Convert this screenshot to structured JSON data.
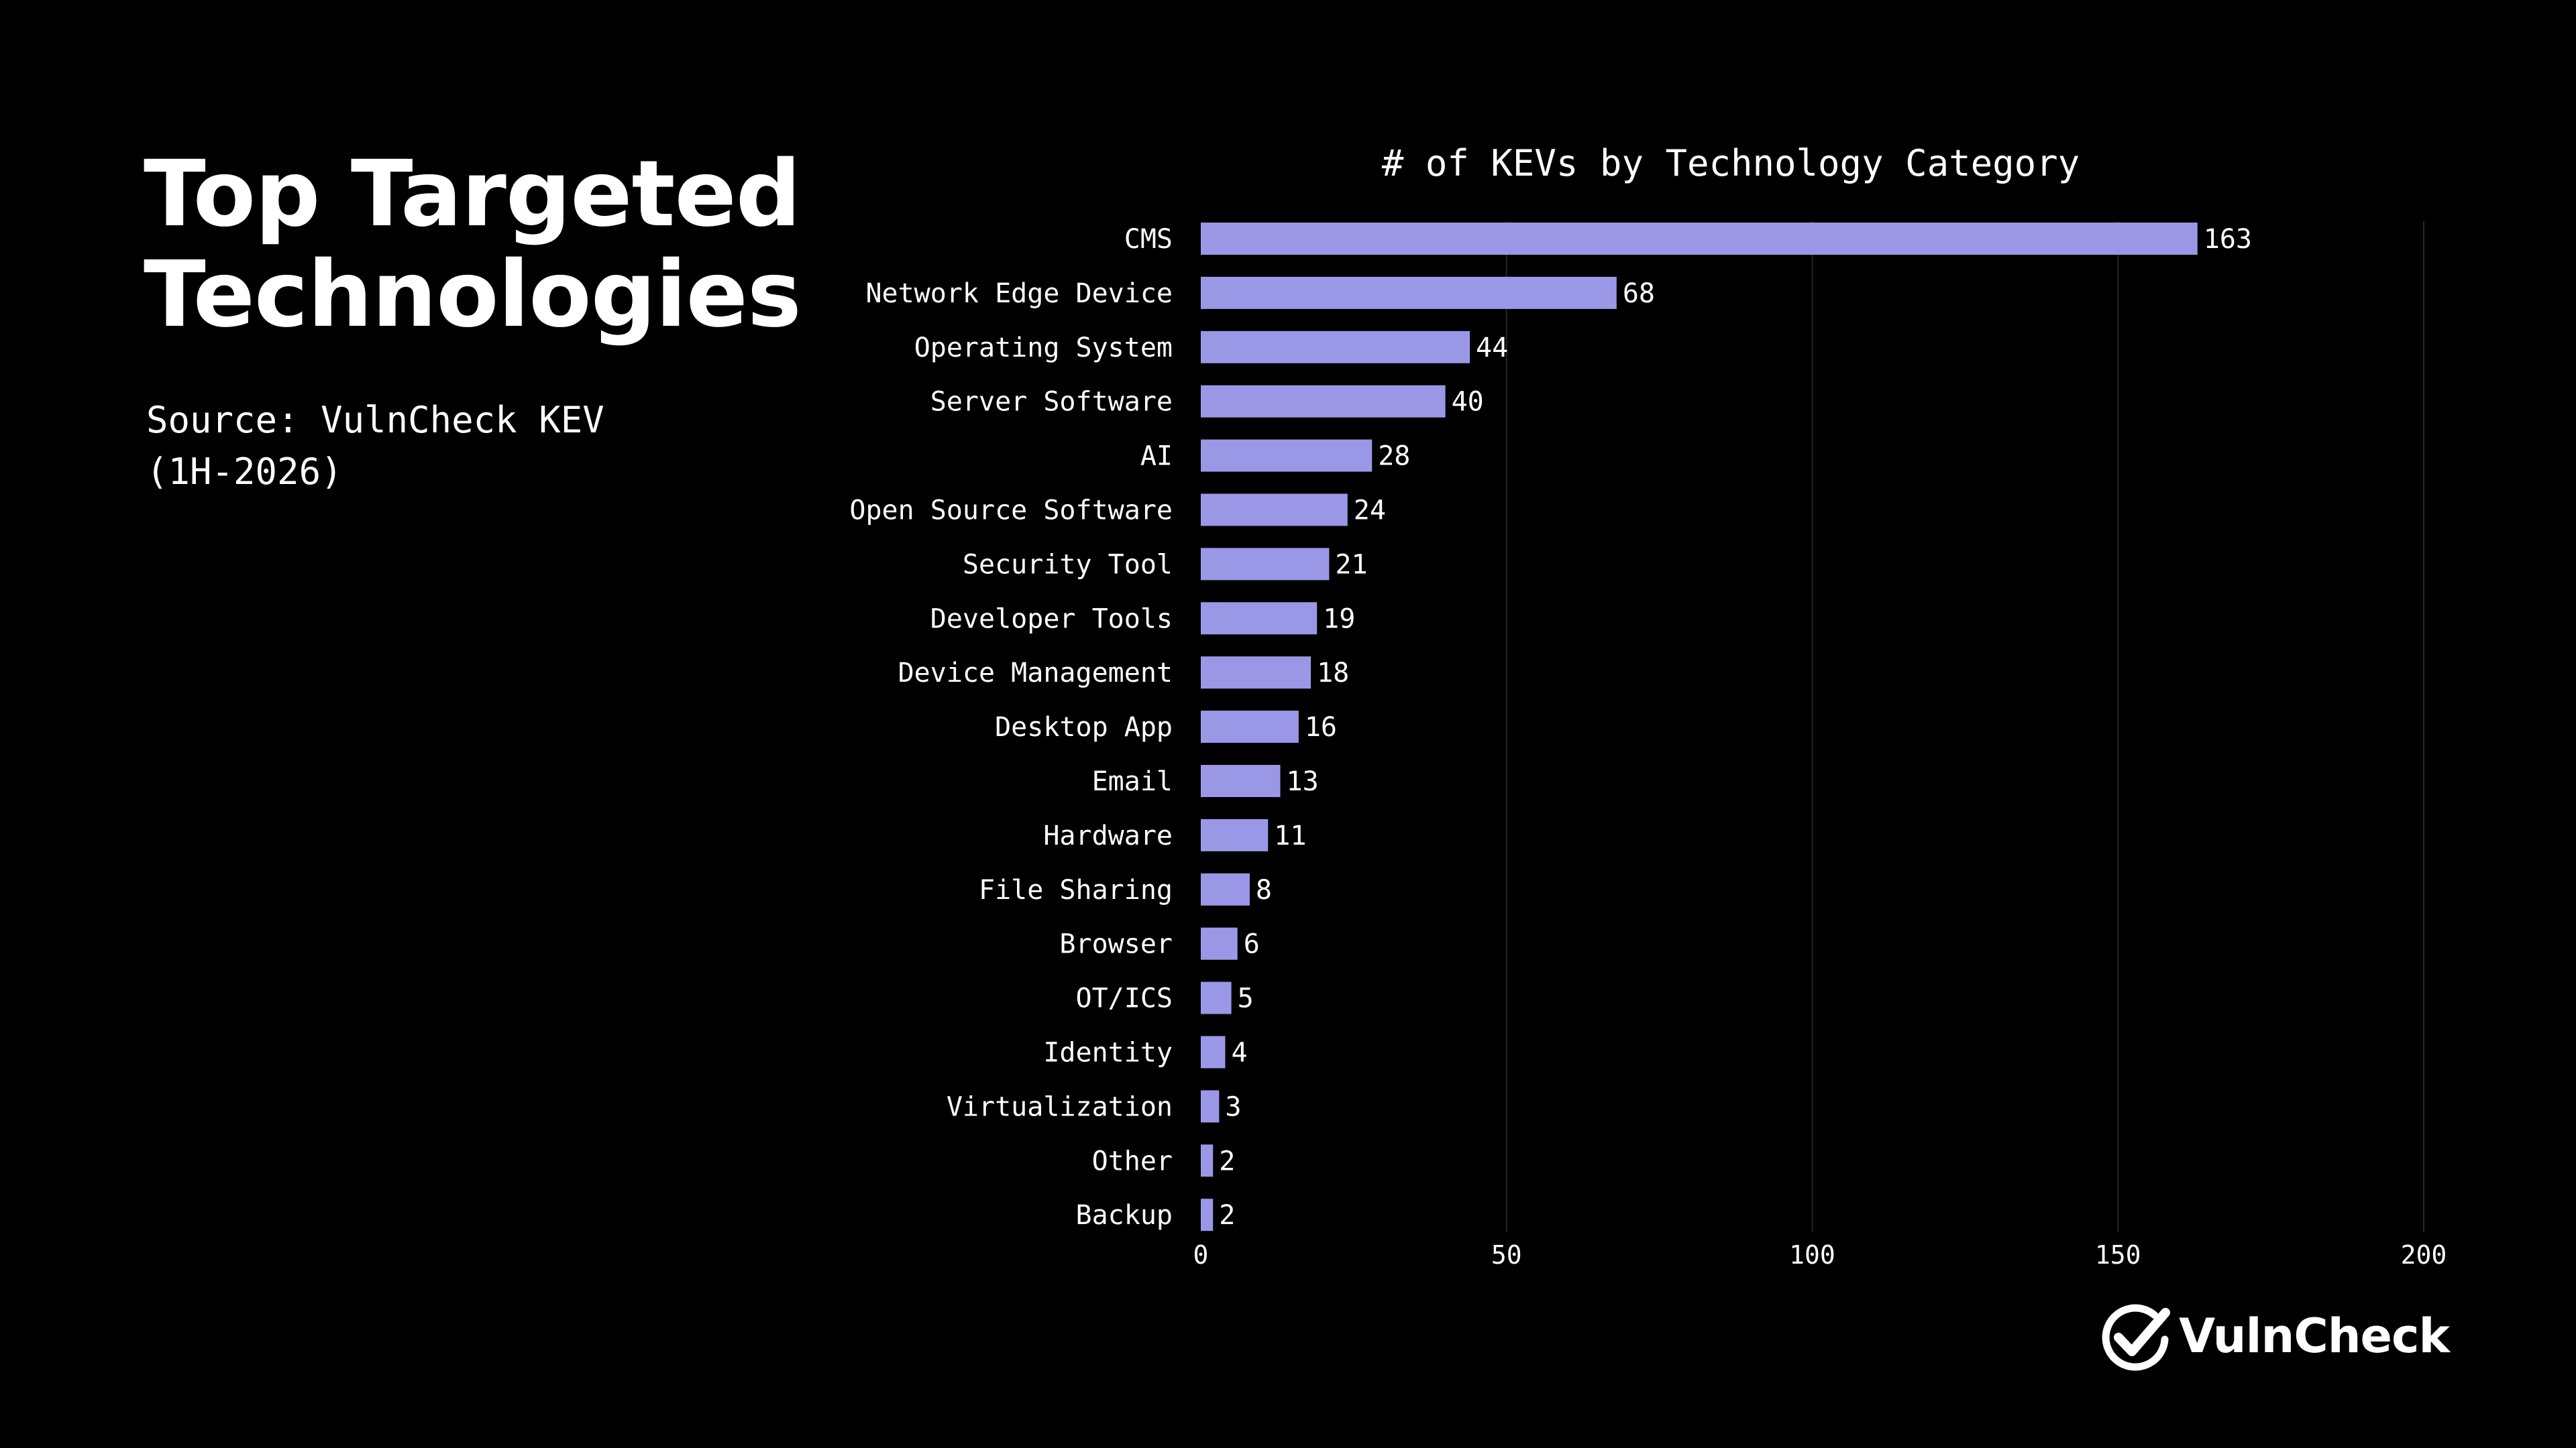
{
  "headline": {
    "line1": "Top Targeted",
    "line2": "Technologies"
  },
  "source": {
    "line1": "Source: VulnCheck KEV",
    "line2": "(1H-2026)"
  },
  "brand": {
    "name": "VulnCheck",
    "icon": "check-circle-icon"
  },
  "colors": {
    "background": "#000000",
    "bar": "#9a98e6",
    "text": "#ffffff",
    "grid": "#262626"
  },
  "chart_data": {
    "type": "bar",
    "orientation": "horizontal",
    "title": "# of KEVs by Technology Category",
    "xlabel": "",
    "ylabel": "",
    "categories": [
      "CMS",
      "Network Edge Device",
      "Operating System",
      "Server Software",
      "AI",
      "Open Source Software",
      "Security Tool",
      "Developer Tools",
      "Device Management",
      "Desktop App",
      "Email",
      "Hardware",
      "File Sharing",
      "Browser",
      "OT/ICS",
      "Identity",
      "Virtualization",
      "Other",
      "Backup"
    ],
    "values": [
      163,
      68,
      44,
      40,
      28,
      24,
      21,
      19,
      18,
      16,
      13,
      11,
      8,
      6,
      5,
      4,
      3,
      2,
      2
    ],
    "xlim": [
      0,
      200
    ],
    "xticks": [
      0,
      50,
      100,
      150,
      200
    ],
    "grid": "vertical",
    "data_labels": true,
    "legend": "none"
  }
}
